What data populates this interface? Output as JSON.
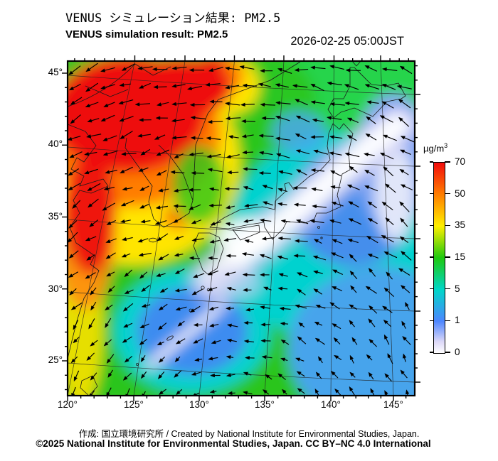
{
  "header": {
    "title_jp": "VENUS シミュレーション結果: PM2.5",
    "title_en": "VENUS simulation result: PM2.5",
    "timestamp": "2026-02-25 05:00JST"
  },
  "colorbar": {
    "unit": "µg/m",
    "unit_sup": "3",
    "tick_labels": [
      "70",
      "50",
      "35",
      "15",
      "5",
      "1",
      "0"
    ],
    "colors": [
      "#f20c0c",
      "#ff7e00",
      "#ffef00",
      "#1fc90f",
      "#00d6c8",
      "#4d86ff",
      "#ffffff"
    ]
  },
  "axes": {
    "lat_labels": [
      "45°",
      "40°",
      "35°",
      "30°",
      "25°"
    ],
    "lon_labels": [
      "120°",
      "125°",
      "130°",
      "135°",
      "140°",
      "145°"
    ]
  },
  "footer": {
    "credit_line": "作成:  国立環境研究所 / Created by National Institute for Environmental Studies, Japan.",
    "license_line": "©2025 National Institute for Environmental Studies, Japan. CC BY–NC 4.0 International"
  },
  "chart_data": {
    "type": "heatmap",
    "title": "VENUS simulation result: PM2.5",
    "timestamp": "2026-02-25 05:00JST",
    "unit": "µg/m³",
    "overlay": "wind-vector-arrows",
    "lon_ticks": [
      120,
      125,
      130,
      135,
      140,
      145
    ],
    "lat_ticks": [
      45,
      40,
      35,
      30,
      25
    ],
    "colorbar_ticks": [
      70,
      50,
      35,
      15,
      5,
      1,
      0
    ],
    "colorbar_colors": [
      "#f20c0c",
      "#ff7e00",
      "#ffef00",
      "#1fc90f",
      "#00d6c8",
      "#4d86ff",
      "#ffffff"
    ],
    "regions": [
      {
        "area": "Northeast China (121-128E, 37-45N)",
        "pm25_ugm3": "50-70"
      },
      {
        "area": "Bohai / Yellow Sea coast",
        "pm25_ugm3": "35-70"
      },
      {
        "area": "Korean peninsula",
        "pm25_ugm3": "15-35"
      },
      {
        "area": "Sea of Japan",
        "pm25_ugm3": "5-15"
      },
      {
        "area": "Central Honshu, Japan (band SW-NE)",
        "pm25_ugm3": "0-1"
      },
      {
        "area": "Pacific south/east of Japan",
        "pm25_ugm3": "1-5"
      },
      {
        "area": "East China Sea",
        "pm25_ugm3": "1-5"
      },
      {
        "area": "Ryukyu island arc streak",
        "pm25_ugm3": "0-1"
      }
    ],
    "wind_pattern": "cyclonic (counter-clockwise) circulation: northeasterlies over NE China turning southward over the East China Sea, easterlies over the Sea of Japan/Okhotsk, flow turning north-westward over the Pacific south of Japan"
  }
}
